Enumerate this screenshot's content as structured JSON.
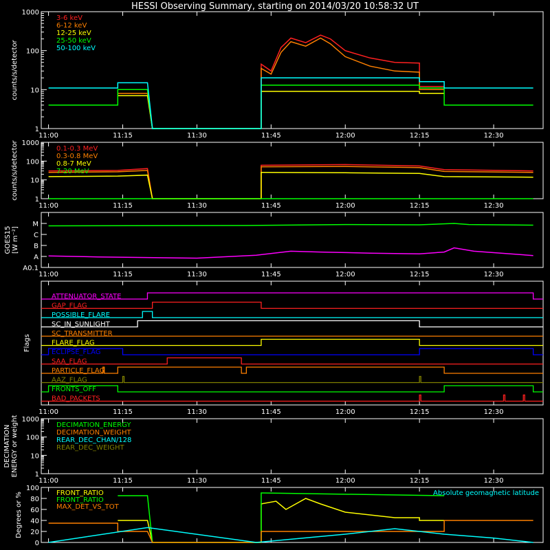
{
  "title": "HESSI Observing Summary, starting on 2014/03/20 10:58:32 UT",
  "time_ticks": [
    "11:00",
    "11:15",
    "11:30",
    "11:45",
    "12:00",
    "12:15",
    "12:30"
  ],
  "chart_data": [
    {
      "id": "lightcurves",
      "type": "line",
      "title": "",
      "ylabel": "counts/s/detector",
      "yscale": "log",
      "ylim": [
        1,
        1000
      ],
      "ytick_labels": [
        "1",
        "10",
        "100",
        "1000"
      ],
      "legend_placement": "top-left",
      "series": [
        {
          "name": "3-6 keV",
          "color": "#ff2020",
          "points": [
            [
              "11:00",
              null
            ],
            [
              "11:14",
              null
            ],
            [
              "11:14",
              10
            ],
            [
              "11:20",
              10
            ],
            [
              "11:21",
              1
            ],
            [
              "11:43",
              1
            ],
            [
              "11:43",
              45
            ],
            [
              "11:45",
              30
            ],
            [
              "11:47",
              120
            ],
            [
              "11:49",
              210
            ],
            [
              "11:52",
              160
            ],
            [
              "11:55",
              250
            ],
            [
              "11:57",
              200
            ],
            [
              "12:00",
              100
            ],
            [
              "12:05",
              65
            ],
            [
              "12:10",
              50
            ],
            [
              "12:15",
              48
            ],
            [
              "12:15",
              12
            ],
            [
              "12:20",
              12
            ],
            [
              "12:20",
              null
            ]
          ]
        },
        {
          "name": "6-12 keV",
          "color": "#ff8000",
          "points": [
            [
              "11:00",
              null
            ],
            [
              "11:14",
              null
            ],
            [
              "11:14",
              8
            ],
            [
              "11:20",
              8
            ],
            [
              "11:21",
              1
            ],
            [
              "11:43",
              1
            ],
            [
              "11:43",
              35
            ],
            [
              "11:45",
              25
            ],
            [
              "11:47",
              90
            ],
            [
              "11:49",
              170
            ],
            [
              "11:52",
              130
            ],
            [
              "11:55",
              210
            ],
            [
              "11:57",
              150
            ],
            [
              "12:00",
              70
            ],
            [
              "12:05",
              40
            ],
            [
              "12:10",
              30
            ],
            [
              "12:15",
              28
            ],
            [
              "12:15",
              10
            ],
            [
              "12:20",
              10
            ],
            [
              "12:20",
              null
            ]
          ]
        },
        {
          "name": "12-25 keV",
          "color": "#ffff00",
          "points": [
            [
              "11:00",
              null
            ],
            [
              "11:14",
              null
            ],
            [
              "11:14",
              7
            ],
            [
              "11:20",
              7
            ],
            [
              "11:21",
              1
            ],
            [
              "11:43",
              1
            ],
            [
              "11:43",
              9
            ],
            [
              "12:15",
              9
            ],
            [
              "12:15",
              8
            ],
            [
              "12:20",
              8
            ],
            [
              "12:20",
              null
            ]
          ]
        },
        {
          "name": "25-50 keV",
          "color": "#00ff00",
          "points": [
            [
              "11:00",
              4
            ],
            [
              "11:14",
              4
            ],
            [
              "11:14",
              10
            ],
            [
              "11:20",
              10
            ],
            [
              "11:21",
              1
            ],
            [
              "11:43",
              1
            ],
            [
              "11:43",
              13
            ],
            [
              "12:15",
              13
            ],
            [
              "12:15",
              11
            ],
            [
              "12:20",
              11
            ],
            [
              "12:20",
              4
            ],
            [
              "12:38",
              4
            ]
          ]
        },
        {
          "name": "50-100 keV",
          "color": "#00ffff",
          "points": [
            [
              "11:00",
              11
            ],
            [
              "11:14",
              11
            ],
            [
              "11:14",
              15
            ],
            [
              "11:20",
              15
            ],
            [
              "11:21",
              1
            ],
            [
              "11:43",
              1
            ],
            [
              "11:43",
              20
            ],
            [
              "12:15",
              20
            ],
            [
              "12:15",
              16
            ],
            [
              "12:20",
              16
            ],
            [
              "12:20",
              11
            ],
            [
              "12:38",
              11
            ]
          ]
        }
      ]
    },
    {
      "id": "highenergy",
      "type": "line",
      "title": "",
      "ylabel": "counts/s/detector",
      "yscale": "log",
      "ylim": [
        1,
        1000
      ],
      "ytick_labels": [
        "1",
        "10",
        "100",
        "1000"
      ],
      "legend_placement": "top-left",
      "series": [
        {
          "name": "0.1-0.3 MeV",
          "color": "#ff2020",
          "points": [
            [
              "11:00",
              30
            ],
            [
              "11:14",
              32
            ],
            [
              "11:20",
              40
            ],
            [
              "11:21",
              1
            ],
            [
              "11:43",
              1
            ],
            [
              "11:43",
              60
            ],
            [
              "12:00",
              65
            ],
            [
              "12:15",
              55
            ],
            [
              "12:20",
              35
            ],
            [
              "12:38",
              30
            ]
          ]
        },
        {
          "name": "0.3-0.8 MeV",
          "color": "#ff8000",
          "points": [
            [
              "11:00",
              25
            ],
            [
              "11:14",
              27
            ],
            [
              "11:20",
              32
            ],
            [
              "11:21",
              1
            ],
            [
              "11:43",
              1
            ],
            [
              "11:43",
              50
            ],
            [
              "12:00",
              52
            ],
            [
              "12:15",
              45
            ],
            [
              "12:20",
              28
            ],
            [
              "12:38",
              25
            ]
          ]
        },
        {
          "name": "0.8-7 MeV",
          "color": "#ffff00",
          "points": [
            [
              "11:00",
              15
            ],
            [
              "11:14",
              16
            ],
            [
              "11:20",
              18
            ],
            [
              "11:21",
              1
            ],
            [
              "11:43",
              1
            ],
            [
              "11:43",
              25
            ],
            [
              "12:00",
              24
            ],
            [
              "12:15",
              22
            ],
            [
              "12:20",
              15
            ],
            [
              "12:38",
              14
            ]
          ]
        },
        {
          "name": "7-20 MeV",
          "color": "#00ff00",
          "points": [
            [
              "11:00",
              1
            ],
            [
              "12:38",
              1
            ]
          ]
        }
      ]
    },
    {
      "id": "goes",
      "type": "line",
      "title": "",
      "ylabel": "GOES15",
      "ylabel2": "[W m⁻²]",
      "yscale": "log",
      "ytick_labels": [
        "A0.1",
        "A",
        "B",
        "C",
        "M"
      ],
      "series": [
        {
          "name": "",
          "color": "#00ff00",
          "points": [
            [
              "11:00",
              6e-06
            ],
            [
              "11:40",
              6.5e-06
            ],
            [
              "12:00",
              8e-06
            ],
            [
              "12:15",
              7.5e-06
            ],
            [
              "12:22",
              1e-05
            ],
            [
              "12:25",
              8e-06
            ],
            [
              "12:38",
              7e-06
            ]
          ]
        },
        {
          "name": "",
          "color": "#ff00ff",
          "points": [
            [
              "11:00",
              1.1e-08
            ],
            [
              "11:10",
              9e-09
            ],
            [
              "11:30",
              7e-09
            ],
            [
              "11:42",
              1.3e-08
            ],
            [
              "11:49",
              3e-08
            ],
            [
              "11:55",
              2.5e-08
            ],
            [
              "12:05",
              2e-08
            ],
            [
              "12:15",
              1.7e-08
            ],
            [
              "12:20",
              2.5e-08
            ],
            [
              "12:22",
              6e-08
            ],
            [
              "12:26",
              3e-08
            ],
            [
              "12:38",
              1.2e-08
            ]
          ]
        }
      ]
    },
    {
      "id": "flags",
      "type": "line",
      "title": "",
      "ylabel": "Flags",
      "flags": [
        {
          "name": "ATTENUATOR_STATE",
          "color": "#ff00ff",
          "on": [
            [
              "11:20",
              "12:38"
            ]
          ]
        },
        {
          "name": "GAP_FLAG",
          "color": "#ff2020",
          "on": [
            [
              "11:21",
              "11:43"
            ]
          ]
        },
        {
          "name": "POSSIBLE_FLARE",
          "color": "#00ffff",
          "on": [
            [
              "11:19",
              "11:21"
            ]
          ]
        },
        {
          "name": "SC_IN_SUNLIGHT",
          "color": "#ffffff",
          "on": [
            [
              "11:18",
              "12:15"
            ]
          ]
        },
        {
          "name": "SC_TRANSMITTER",
          "color": "#ff8000",
          "on": []
        },
        {
          "name": "FLARE_FLAG",
          "color": "#ffff00",
          "on": [
            [
              "11:43",
              "12:15"
            ]
          ]
        },
        {
          "name": "ECLIPSE_FLAG",
          "color": "#0000ff",
          "on": [
            [
              "11:00",
              "11:15"
            ],
            [
              "12:15",
              "12:38"
            ]
          ]
        },
        {
          "name": "SAA_FLAG",
          "color": "#ff2020",
          "on": [
            [
              "11:24",
              "11:39"
            ]
          ]
        },
        {
          "name": "PARTICLE_FLAG",
          "color": "#ff8000",
          "on": [
            [
              "11:11",
              "11:11"
            ],
            [
              "11:14",
              "11:39"
            ],
            [
              "11:40",
              "12:20"
            ]
          ]
        },
        {
          "name": "AAZ_FLAG",
          "color": "#808000",
          "on": [
            [
              "11:15",
              "11:15"
            ],
            [
              "12:15",
              "12:15"
            ]
          ]
        },
        {
          "name": "FRONTS_OFF",
          "color": "#00ff00",
          "on": [
            [
              "11:00",
              "11:14"
            ],
            [
              "12:20",
              "12:38"
            ]
          ]
        },
        {
          "name": "BAD_PACKETS",
          "color": "#ff2020",
          "on": [
            [
              "12:15",
              "12:15"
            ],
            [
              "12:32",
              "12:32"
            ],
            [
              "12:36",
              "12:36"
            ]
          ]
        }
      ]
    },
    {
      "id": "decimation",
      "type": "line",
      "title": "",
      "ylabel": "DECIMATION",
      "ylabel2": "ENERGY or weight",
      "yscale": "log",
      "ylim": [
        1,
        1000
      ],
      "ytick_labels": [
        "1",
        "10",
        "100",
        "1000"
      ],
      "legend_placement": "top-left",
      "series": [
        {
          "name": "DECIMATION_ENERGY",
          "color": "#00ff00",
          "points": []
        },
        {
          "name": "DECIMATION_WEIGHT",
          "color": "#ff8000",
          "points": []
        },
        {
          "name": "REAR_DEC_CHAN/128",
          "color": "#00ffff",
          "points": []
        },
        {
          "name": "REAR_DEC_WEIGHT",
          "color": "#808000",
          "points": []
        }
      ]
    },
    {
      "id": "ratios",
      "type": "line",
      "title": "",
      "ylabel": "Degrees or %",
      "ylim": [
        0,
        100
      ],
      "ytick_labels": [
        "0",
        "20",
        "40",
        "60",
        "80",
        "100"
      ],
      "legend_placement": "top-left",
      "series": [
        {
          "name": "FRONT_RATIO",
          "color": "#ffff00",
          "points": [
            [
              "11:14",
              40
            ],
            [
              "11:20",
              40
            ],
            [
              "11:21",
              0
            ],
            [
              "11:43",
              0
            ],
            [
              "11:43",
              70
            ],
            [
              "11:46",
              75
            ],
            [
              "11:48",
              60
            ],
            [
              "11:52",
              80
            ],
            [
              "11:55",
              70
            ],
            [
              "12:00",
              55
            ],
            [
              "12:10",
              45
            ],
            [
              "12:15",
              45
            ],
            [
              "12:15",
              40
            ],
            [
              "12:20",
              40
            ]
          ]
        },
        {
          "name": "FRONT_RATIO",
          "color": "#00ff00",
          "points": [
            [
              "11:14",
              85
            ],
            [
              "11:20",
              85
            ],
            [
              "11:21",
              0
            ],
            [
              "11:43",
              0
            ],
            [
              "11:43",
              90
            ],
            [
              "12:20",
              85
            ]
          ]
        },
        {
          "name": "MAX_DET_VS_TOT",
          "color": "#ff8000",
          "points": [
            [
              "11:00",
              35
            ],
            [
              "11:14",
              35
            ],
            [
              "11:14",
              20
            ],
            [
              "11:20",
              20
            ],
            [
              "11:21",
              0
            ],
            [
              "11:43",
              0
            ],
            [
              "11:43",
              20
            ],
            [
              "12:20",
              20
            ],
            [
              "12:20",
              40
            ],
            [
              "12:38",
              40
            ]
          ]
        },
        {
          "name": "Absolute geomagnetic latitude",
          "color": "#00ffff",
          "points": [
            [
              "11:00",
              0
            ],
            [
              "11:20",
              27
            ],
            [
              "11:42",
              0
            ],
            [
              "12:00",
              15
            ],
            [
              "12:10",
              25
            ],
            [
              "12:20",
              15
            ],
            [
              "12:30",
              8
            ],
            [
              "12:38",
              0
            ]
          ]
        }
      ]
    }
  ]
}
